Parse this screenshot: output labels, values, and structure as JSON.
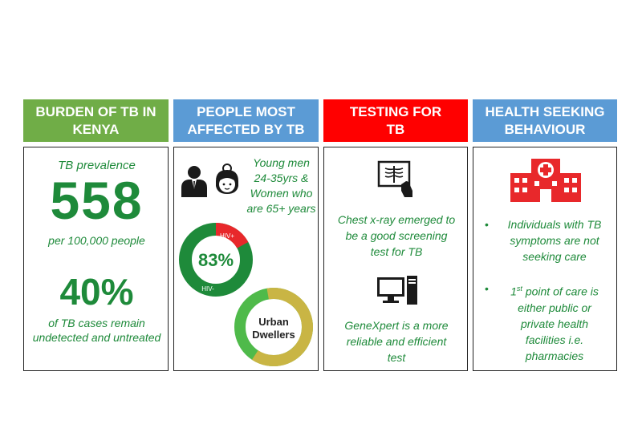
{
  "columns": [
    {
      "header": [
        "BURDEN OF TB IN",
        "KENYA"
      ],
      "color": "#70ad47",
      "prevalence_label": "TB prevalence",
      "prevalence_value": "558",
      "prevalence_unit": "per 100,000 people",
      "undetected_value": "40%",
      "undetected_text": [
        "of TB cases remain",
        "undetected and untreated"
      ]
    },
    {
      "header": [
        "PEOPLE MOST",
        "AFFECTED BY TB"
      ],
      "color": "#5b9bd5",
      "people_text": [
        "Young men",
        "24-35yrs &",
        "Women who",
        "are 65+ years"
      ],
      "hiv_donut": {
        "center_label": "83%",
        "hiv_neg_label": "HIV-",
        "hiv_pos_label": "HIV+",
        "hiv_neg_fraction": 0.83,
        "neg_color": "#1e8a3a",
        "pos_color": "#e8282b"
      },
      "urban_donut": {
        "center_label": [
          "Urban",
          "Dwellers"
        ],
        "urban_fraction": 0.62,
        "urban_color": "#c9b544",
        "other_color": "#4fba4a"
      }
    },
    {
      "header": [
        "TESTING FOR",
        "TB"
      ],
      "color": "#ff0000",
      "xray_text": [
        "Chest x-ray emerged to",
        "be a good screening",
        "test for TB"
      ],
      "genexpert_text": [
        "GeneXpert is a more",
        "reliable and efficient",
        "test"
      ],
      "icons": [
        "xray-icon",
        "computer-icon"
      ]
    },
    {
      "header": [
        "HEALTH SEEKING",
        "BEHAVIOUR"
      ],
      "color": "#5b9bd5",
      "bullet1": [
        "Individuals with TB",
        "symptoms are not",
        "seeking care"
      ],
      "bullet2_sup": "st",
      "bullet2_first": "1",
      "bullet2_rest_line1": " point of care is",
      "bullet2_lines": [
        "either public or",
        "private health",
        "facilities i.e.",
        "pharmacies"
      ],
      "bullet_char": "•",
      "icons": [
        "hospital-icon"
      ]
    }
  ]
}
